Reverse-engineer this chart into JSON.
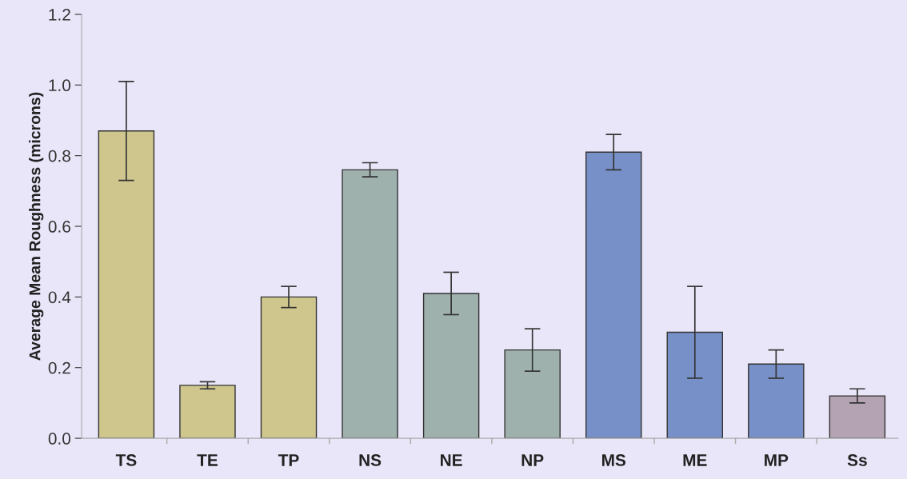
{
  "chart_data": {
    "type": "bar",
    "ylabel": "Average Mean Roughness (microns)",
    "categories": [
      "TS",
      "TE",
      "TP",
      "NS",
      "NE",
      "NP",
      "MS",
      "ME",
      "MP",
      "Ss"
    ],
    "values": [
      0.87,
      0.15,
      0.4,
      0.76,
      0.41,
      0.25,
      0.81,
      0.3,
      0.21,
      0.12
    ],
    "errors": [
      0.14,
      0.01,
      0.03,
      0.02,
      0.06,
      0.06,
      0.05,
      0.13,
      0.04,
      0.02
    ],
    "colors": [
      "#cfc68e",
      "#cfc68e",
      "#cfc68e",
      "#9fb1ad",
      "#9fb1ad",
      "#9fb1ad",
      "#7890c8",
      "#7890c8",
      "#7890c8",
      "#b3a3b3"
    ],
    "ylim": [
      0,
      1.2
    ],
    "yticks": [
      "0.0",
      0.2,
      0.4,
      0.6,
      0.8,
      "1.0",
      1.2
    ],
    "grid": false,
    "legend": false
  }
}
